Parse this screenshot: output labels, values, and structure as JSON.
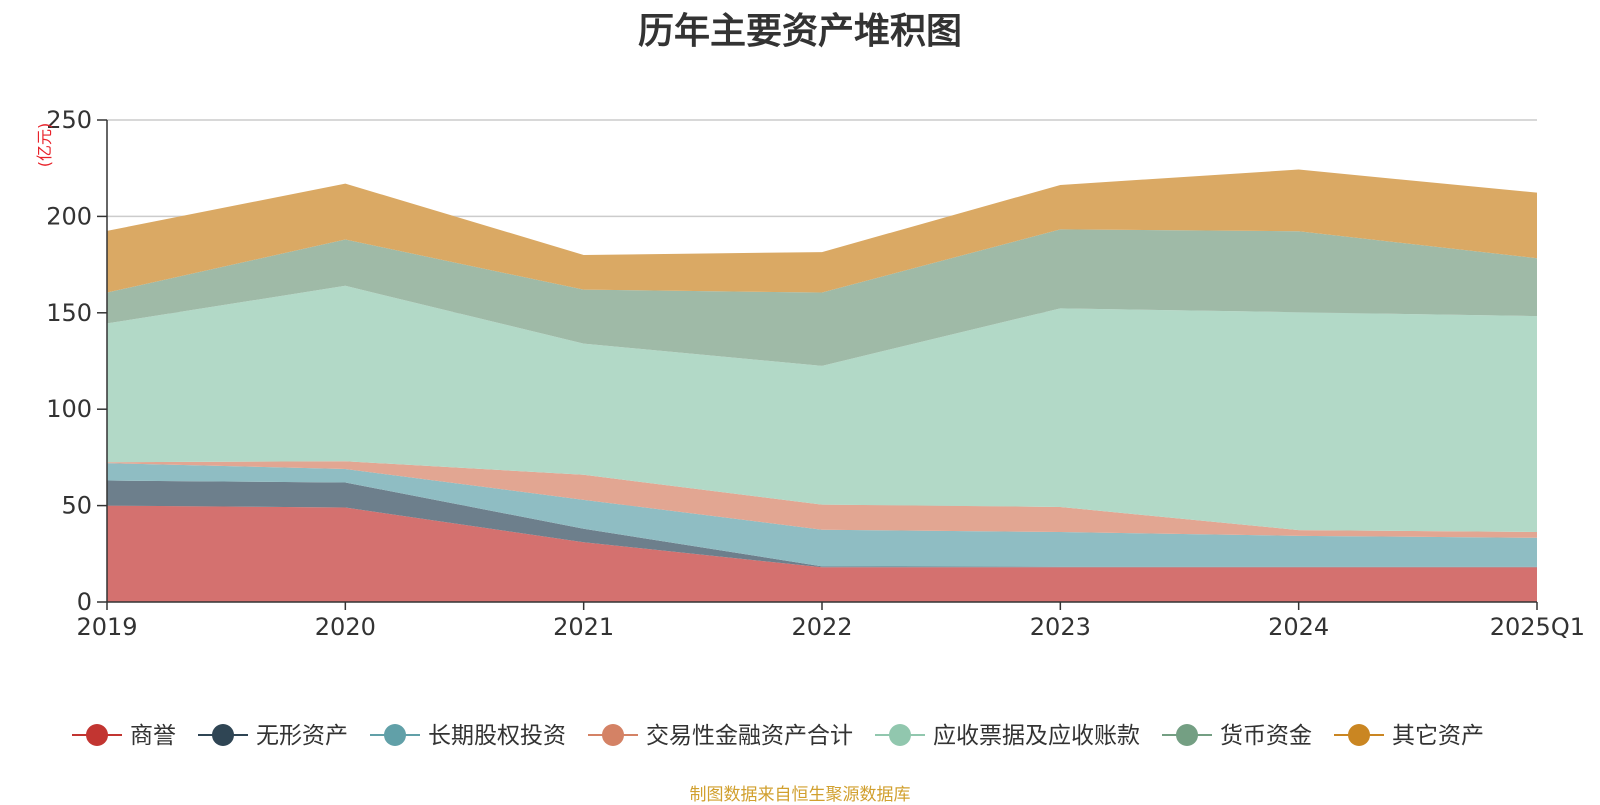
{
  "chart_data": {
    "type": "area",
    "stacked": true,
    "title": "历年主要资产堆积图",
    "unit_label": "(亿元)",
    "categories": [
      "2019",
      "2020",
      "2021",
      "2022",
      "2023",
      "2024",
      "2025Q1"
    ],
    "ylim": [
      0,
      250
    ],
    "yticks": [
      0,
      50,
      100,
      150,
      200,
      250
    ],
    "grid": true,
    "legend_position": "bottom",
    "series": [
      {
        "name": "商誉",
        "color": "#c23531",
        "area_color": "#d4716f",
        "values": [
          50,
          49,
          31,
          18,
          18,
          18,
          18
        ]
      },
      {
        "name": "无形资产",
        "color": "#2f4554",
        "area_color": "#6d7f8c",
        "values": [
          13,
          13,
          7,
          0.5,
          0.3,
          0.3,
          0.3
        ]
      },
      {
        "name": "长期股权投资",
        "color": "#61a0a8",
        "area_color": "#8fbdc3",
        "values": [
          9,
          7,
          15,
          19,
          18,
          16,
          15
        ]
      },
      {
        "name": "交易性金融资产合计",
        "color": "#d48265",
        "area_color": "#e2a692",
        "values": [
          0.5,
          4,
          13,
          13,
          13,
          3,
          3
        ]
      },
      {
        "name": "应收票据及应收账款",
        "color": "#91c7ae",
        "area_color": "#b2d9c7",
        "values": [
          72,
          91,
          68,
          72,
          103,
          113,
          112
        ]
      },
      {
        "name": "货币资金",
        "color": "#749f83",
        "area_color": "#9fbaa7",
        "values": [
          16,
          24,
          28,
          38,
          41,
          42,
          30
        ]
      },
      {
        "name": "其它资产",
        "color": "#ca8622",
        "area_color": "#daa964",
        "values": [
          32,
          29,
          18,
          21,
          23,
          32,
          34
        ]
      }
    ]
  },
  "source_note": "制图数据来自恒生聚源数据库"
}
